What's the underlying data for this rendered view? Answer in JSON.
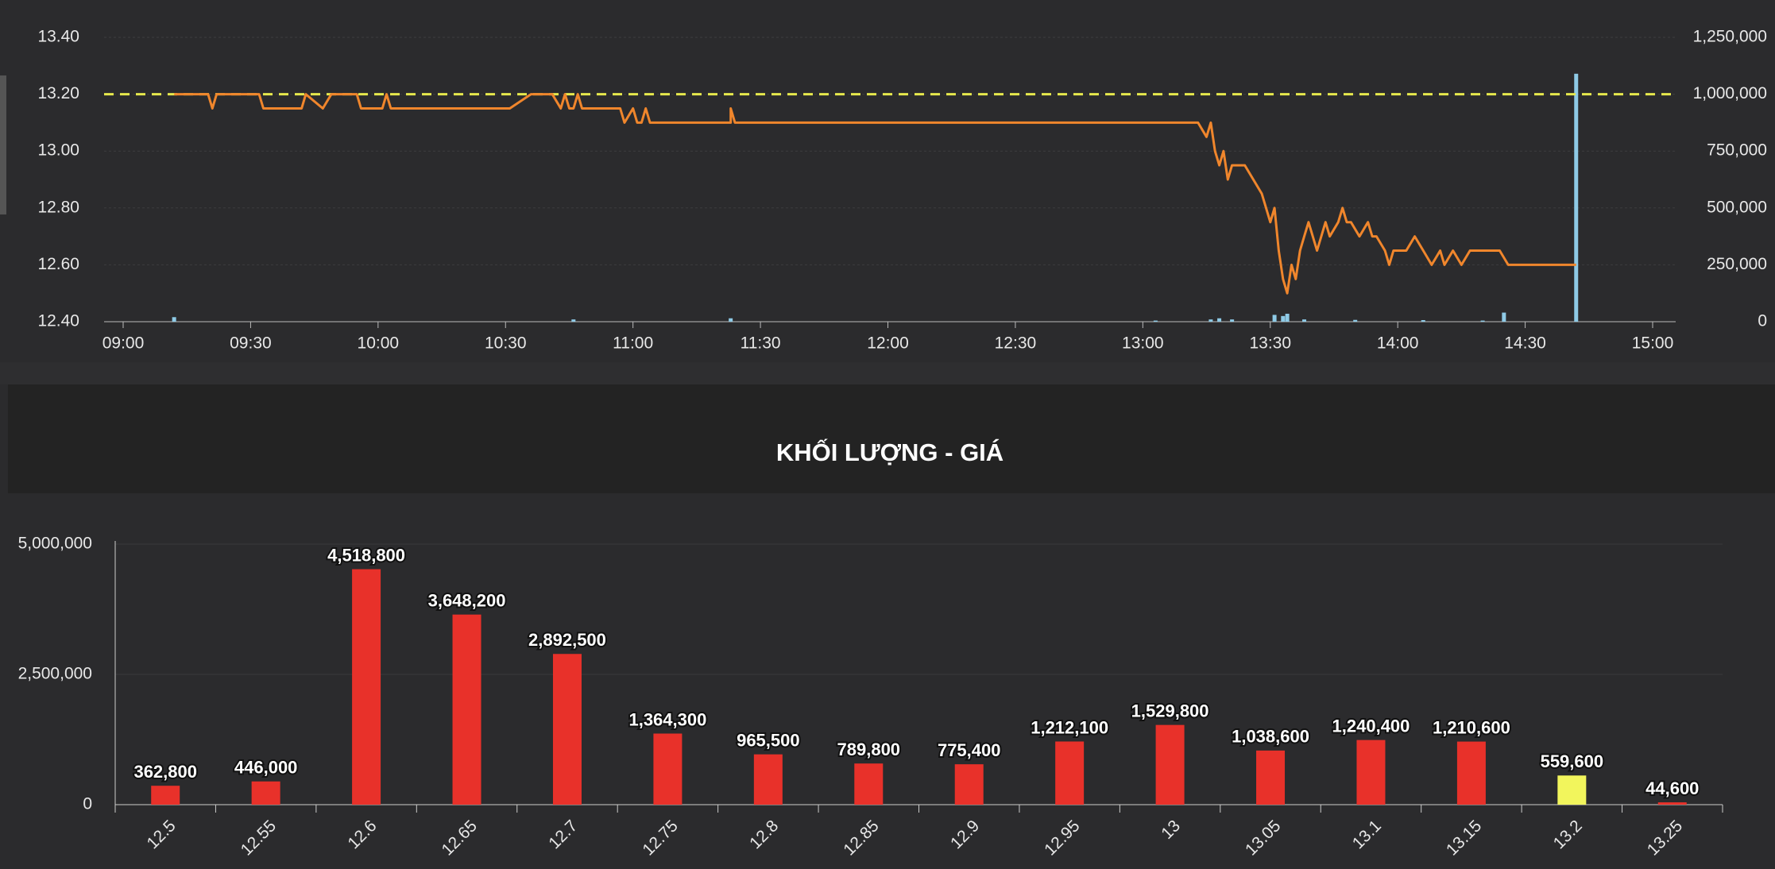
{
  "chart_data": [
    {
      "type": "line",
      "xlim": [
        "09:00",
        "15:00"
      ],
      "xticks": [
        "09:00",
        "09:30",
        "10:00",
        "10:30",
        "11:00",
        "11:30",
        "12:00",
        "12:30",
        "13:00",
        "13:30",
        "14:00",
        "14:30",
        "15:00"
      ],
      "ylim": [
        12.4,
        13.4
      ],
      "yticks": [
        {
          "value": 12.4,
          "label": "12.40"
        },
        {
          "value": 12.6,
          "label": "12.60"
        },
        {
          "value": 12.8,
          "label": "12.80"
        },
        {
          "value": 13.0,
          "label": "13.00"
        },
        {
          "value": 13.2,
          "label": "13.20"
        },
        {
          "value": 13.4,
          "label": "13.40"
        }
      ],
      "y2lim": [
        0,
        1250000
      ],
      "y2ticks": [
        0,
        {
          "value": 250000,
          "label": "250,000"
        },
        {
          "value": 500000,
          "label": "500,000"
        },
        {
          "value": 750000,
          "label": "750,000"
        },
        {
          "value": 1000000,
          "label": "1,000,000"
        },
        {
          "value": 1250000,
          "label": "1,250,000"
        }
      ],
      "grid": true,
      "reference_line": {
        "value": 13.2,
        "color": "#e6e84c"
      },
      "series": [
        {
          "type": "line",
          "color": "#f0862c",
          "x": [
            "09:12",
            "09:20",
            "09:21",
            "09:22",
            "09:32",
            "09:33",
            "09:42",
            "09:43",
            "09:47",
            "09:49",
            "09:55",
            "09:56",
            "10:01",
            "10:02",
            "10:03",
            "10:31",
            "10:36",
            "10:41",
            "10:43",
            "10:44",
            "10:45",
            "10:46",
            "10:47",
            "10:48",
            "10:49",
            "10:57",
            "10:58",
            "11:00",
            "11:01",
            "11:02",
            "11:03",
            "11:04",
            "11:05",
            "11:06",
            "11:07",
            "11:23",
            "11:23",
            "11:24",
            "13:13",
            "13:15",
            "13:16",
            "13:17",
            "13:18",
            "13:19",
            "13:20",
            "13:21",
            "13:24",
            "13:26",
            "13:28",
            "13:30",
            "13:31",
            "13:32",
            "13:33",
            "13:34",
            "13:35",
            "13:36",
            "13:37",
            "13:38",
            "13:39",
            "13:41",
            "13:43",
            "13:44",
            "13:46",
            "13:47",
            "13:48",
            "13:49",
            "13:51",
            "13:53",
            "13:54",
            "13:55",
            "13:57",
            "13:58",
            "13:59",
            "14:02",
            "14:04",
            "14:06",
            "14:08",
            "14:10",
            "14:11",
            "14:13",
            "14:15",
            "14:17",
            "14:19",
            "14:24",
            "14:26",
            "14:27",
            "14:42"
          ],
          "values": [
            13.2,
            13.2,
            13.15,
            13.2,
            13.2,
            13.15,
            13.15,
            13.2,
            13.15,
            13.2,
            13.2,
            13.15,
            13.15,
            13.2,
            13.15,
            13.15,
            13.2,
            13.2,
            13.15,
            13.2,
            13.15,
            13.15,
            13.2,
            13.15,
            13.15,
            13.15,
            13.1,
            13.15,
            13.1,
            13.1,
            13.15,
            13.1,
            13.1,
            13.1,
            13.1,
            13.1,
            13.15,
            13.1,
            13.1,
            13.05,
            13.1,
            13.0,
            12.95,
            13.0,
            12.9,
            12.95,
            12.95,
            12.9,
            12.85,
            12.75,
            12.8,
            12.65,
            12.55,
            12.5,
            12.6,
            12.55,
            12.65,
            12.7,
            12.75,
            12.65,
            12.75,
            12.7,
            12.75,
            12.8,
            12.75,
            12.75,
            12.7,
            12.75,
            12.7,
            12.7,
            12.65,
            12.6,
            12.65,
            12.65,
            12.7,
            12.65,
            12.6,
            12.65,
            12.6,
            12.65,
            12.6,
            12.65,
            12.65,
            12.65,
            12.6,
            12.6,
            12.6
          ]
        },
        {
          "type": "bar",
          "axis": "y2",
          "color": "#8ecae6",
          "x": [
            "09:12",
            "10:46",
            "11:23",
            "13:03",
            "13:16",
            "13:18",
            "13:21",
            "13:31",
            "13:33",
            "13:34",
            "13:38",
            "13:50",
            "14:06",
            "14:20",
            "14:25",
            "14:42"
          ],
          "values": [
            20000,
            10000,
            15000,
            5000,
            10000,
            15000,
            10000,
            30000,
            25000,
            35000,
            10000,
            8000,
            7000,
            5000,
            40000,
            1090000
          ]
        }
      ]
    },
    {
      "type": "bar",
      "title": "KHỐI LƯỢNG - GIÁ",
      "categories": [
        "12.5",
        "12.55",
        "12.6",
        "12.65",
        "12.7",
        "12.75",
        "12.8",
        "12.85",
        "12.9",
        "12.95",
        "13",
        "13.05",
        "13.1",
        "13.15",
        "13.2",
        "13.25"
      ],
      "values": [
        362800,
        446000,
        4518800,
        3648200,
        2892500,
        1364300,
        965500,
        789800,
        775400,
        1212100,
        1529800,
        1038600,
        1240400,
        1210600,
        559600,
        44600
      ],
      "value_labels": [
        "362,800",
        "446,000",
        "4,518,800",
        "3,648,200",
        "2,892,500",
        "1,364,300",
        "965,500",
        "789,800",
        "775,400",
        "1,212,100",
        "1,529,800",
        "1,038,600",
        "1,240,400",
        "1,210,600",
        "559,600",
        "44,600"
      ],
      "colors": [
        "#e8312a",
        "#e8312a",
        "#e8312a",
        "#e8312a",
        "#e8312a",
        "#e8312a",
        "#e8312a",
        "#e8312a",
        "#e8312a",
        "#e8312a",
        "#e8312a",
        "#e8312a",
        "#e8312a",
        "#e8312a",
        "#f2f55c",
        "#e8312a"
      ],
      "ylim": [
        0,
        5000000
      ],
      "yticks": [
        0,
        {
          "value": 2500000,
          "label": "2,500,000"
        },
        {
          "value": 5000000,
          "label": "5,000,000"
        }
      ],
      "grid": true
    }
  ]
}
